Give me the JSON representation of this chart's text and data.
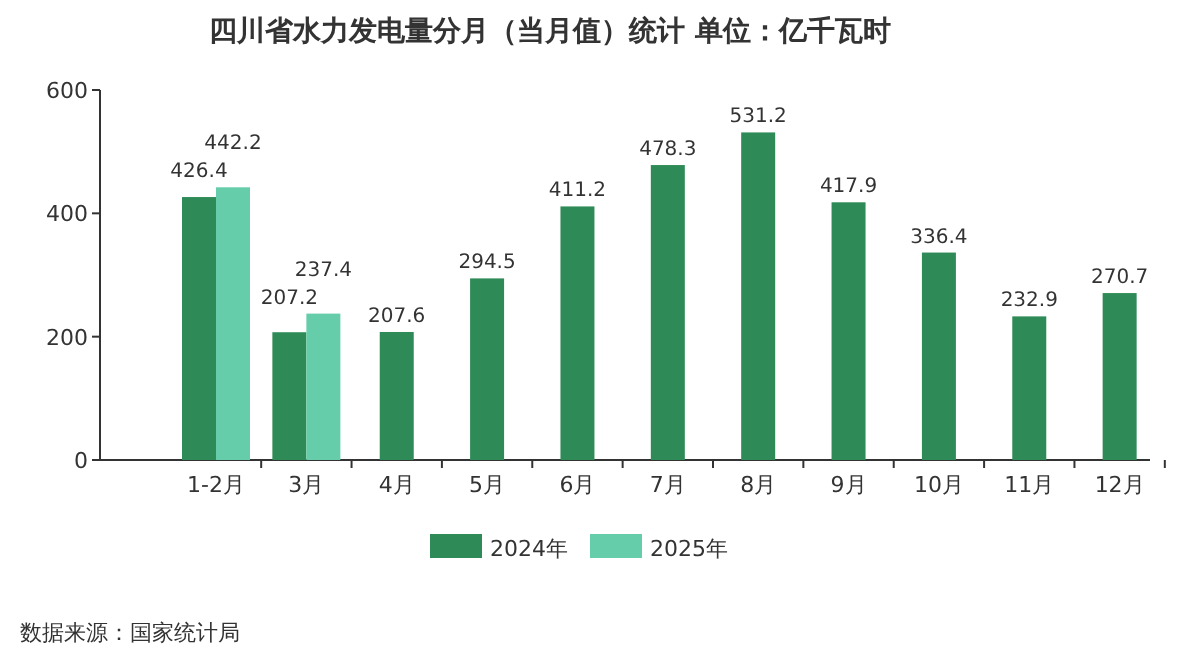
{
  "chart_data": {
    "type": "bar",
    "title": "四川省水力发电量分月（当月值）统计 单位：亿千瓦时",
    "categories": [
      "1-2月",
      "3月",
      "4月",
      "5月",
      "6月",
      "7月",
      "8月",
      "9月",
      "10月",
      "11月",
      "12月"
    ],
    "series": [
      {
        "name": "2024年",
        "color": "#2e8b57",
        "values": [
          426.4,
          207.2,
          207.6,
          294.5,
          411.2,
          478.3,
          531.2,
          417.9,
          336.4,
          232.9,
          270.7
        ]
      },
      {
        "name": "2025年",
        "color": "#66cdaa",
        "values": [
          442.2,
          237.4,
          null,
          null,
          null,
          null,
          null,
          null,
          null,
          null,
          null
        ]
      }
    ],
    "ylim": [
      0,
      600
    ],
    "yticks": [
      0,
      200,
      400,
      600
    ],
    "data_labels": true,
    "legend": "bottom",
    "annotations": [
      "数据来源：国家统计局"
    ]
  }
}
